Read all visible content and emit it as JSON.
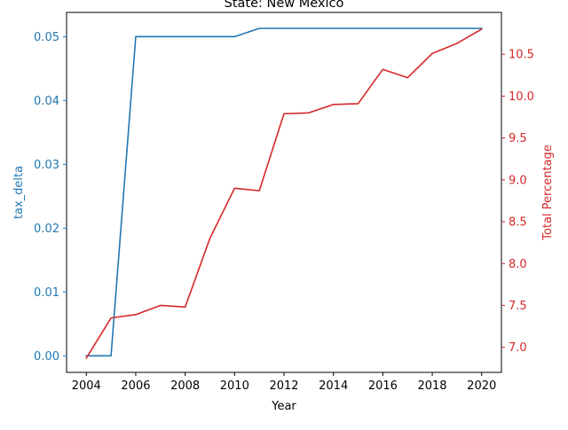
{
  "chart_data": {
    "type": "line",
    "title": "State: New Mexico",
    "xlabel": "Year",
    "ylabel_left": "tax_delta",
    "ylabel_right": "Total Percentage",
    "x": [
      2004,
      2005,
      2006,
      2007,
      2008,
      2009,
      2010,
      2011,
      2012,
      2013,
      2014,
      2015,
      2016,
      2017,
      2018,
      2019,
      2020
    ],
    "xlim": [
      2003.2,
      2020.8
    ],
    "xticks": [
      2004,
      2006,
      2008,
      2010,
      2012,
      2014,
      2016,
      2018,
      2020
    ],
    "ylim_left": [
      -0.0026,
      0.0538
    ],
    "yticks_left": [
      "0.00",
      "0.01",
      "0.02",
      "0.03",
      "0.04",
      "0.05"
    ],
    "ylim_right": [
      6.7,
      11.0
    ],
    "yticks_right": [
      "7.0",
      "7.5",
      "8.0",
      "8.5",
      "9.0",
      "9.5",
      "10.0",
      "10.5"
    ],
    "grid": false,
    "series": [
      {
        "name": "tax_delta",
        "axis": "left",
        "color": "#1f77b4",
        "values": [
          0.0,
          0.0,
          0.05,
          0.05,
          0.05,
          0.05,
          0.05,
          0.0513,
          0.0513,
          0.0513,
          0.0513,
          0.0513,
          0.0513,
          0.0513,
          0.0513,
          0.0513,
          0.0513
        ]
      },
      {
        "name": "Total Percentage",
        "axis": "right",
        "color": "#d62728",
        "values": [
          6.87,
          7.35,
          7.39,
          7.5,
          7.48,
          8.3,
          8.9,
          8.87,
          9.79,
          9.8,
          9.9,
          9.91,
          10.32,
          10.22,
          10.51,
          10.63,
          10.8
        ]
      }
    ]
  }
}
